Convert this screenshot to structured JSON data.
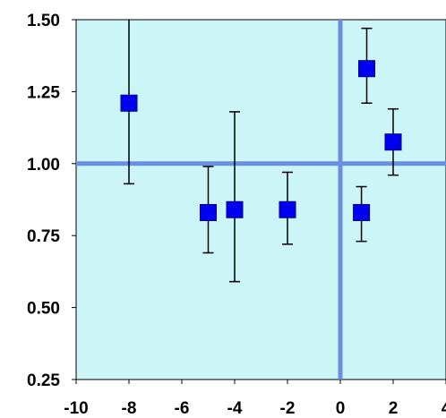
{
  "chart_data": {
    "type": "scatter",
    "title": "",
    "xlabel": "",
    "ylabel": "",
    "xlim": [
      -10,
      4
    ],
    "ylim": [
      0.25,
      1.5
    ],
    "x_ticks": [
      -10,
      -8,
      -6,
      -4,
      -2,
      0,
      2,
      4
    ],
    "y_ticks": [
      0.25,
      0.5,
      0.75,
      1.0,
      1.25,
      1.5
    ],
    "x_tick_labels": [
      "-10",
      "-8",
      "-6",
      "-4",
      "-2",
      "0",
      "2",
      "4"
    ],
    "y_tick_labels": [
      "0.25",
      "0.50",
      "0.75",
      "1.00",
      "1.25",
      "1.50"
    ],
    "reference_lines": {
      "x": 0,
      "y": 1.0
    },
    "grid": false,
    "legend": "none",
    "colors": {
      "plot_bg": "#ccf5f8",
      "marker": "#0000f0",
      "reference_line": "#6b8fe0",
      "errorbar": "#000000"
    },
    "series": [
      {
        "points": [
          {
            "x": -8.0,
            "y": 1.21,
            "ylow": 0.93,
            "yhigh": 1.55
          },
          {
            "x": -5.0,
            "y": 0.83,
            "ylow": 0.69,
            "yhigh": 0.99
          },
          {
            "x": -4.0,
            "y": 0.84,
            "ylow": 0.59,
            "yhigh": 1.18
          },
          {
            "x": -2.0,
            "y": 0.84,
            "ylow": 0.72,
            "yhigh": 0.97
          },
          {
            "x": 1.0,
            "y": 1.33,
            "ylow": 1.21,
            "yhigh": 1.47
          },
          {
            "x": 0.8,
            "y": 0.83,
            "ylow": 0.73,
            "yhigh": 0.92
          },
          {
            "x": 2.0,
            "y": 1.075,
            "ylow": 0.96,
            "yhigh": 1.19
          }
        ]
      }
    ]
  }
}
